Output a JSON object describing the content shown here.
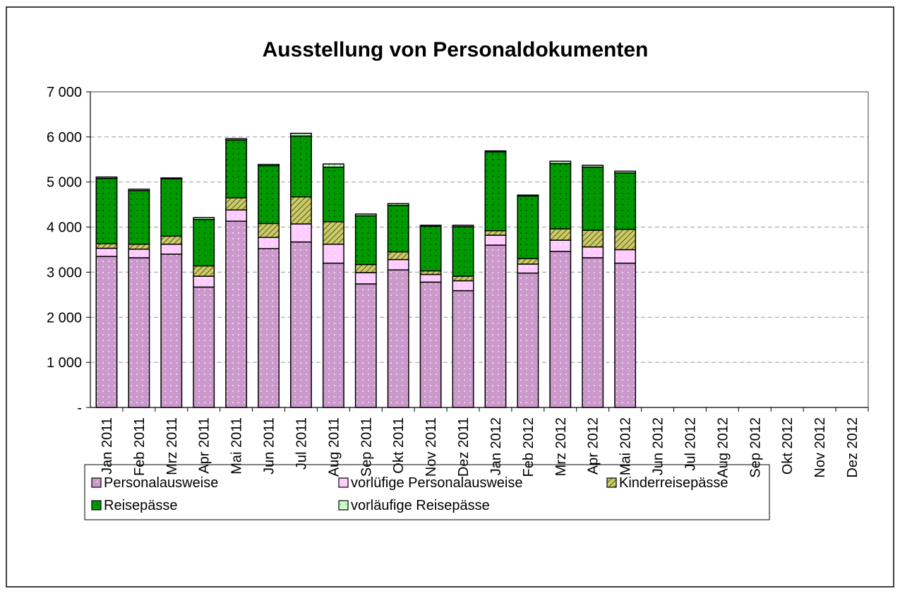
{
  "chart_data": {
    "type": "stacked_bar",
    "title": "Ausstellung von Personaldokumenten",
    "categories": [
      "Jan 2011",
      "Feb 2011",
      "Mrz 2011",
      "Apr 2011",
      "Mai 2011",
      "Jun 2011",
      "Jul 2011",
      "Aug 2011",
      "Sep 2011",
      "Okt 2011",
      "Nov 2011",
      "Dez 2011",
      "Jan 2012",
      "Feb 2012",
      "Mrz 2012",
      "Apr 2012",
      "Mai 2012",
      "Jun 2012",
      "Jul 2012",
      "Aug 2012",
      "Sep 2012",
      "Okt 2012",
      "Nov 2012",
      "Dez 2012"
    ],
    "series": [
      {
        "name": "Personalausweise",
        "color": "#cc99cc",
        "values": [
          3350,
          3320,
          3400,
          2670,
          4130,
          3520,
          3670,
          3200,
          2740,
          3050,
          2780,
          2590,
          3600,
          2980,
          3460,
          3320,
          3200,
          null,
          null,
          null,
          null,
          null,
          null,
          null
        ]
      },
      {
        "name": "vorlüfige Personalausweise",
        "color": "#ffccff",
        "values": [
          180,
          190,
          220,
          240,
          250,
          250,
          400,
          420,
          250,
          230,
          170,
          220,
          220,
          200,
          250,
          240,
          300,
          null,
          null,
          null,
          null,
          null,
          null,
          null
        ]
      },
      {
        "name": "Kinderreisepässe",
        "color": "#cccc66",
        "values": [
          100,
          110,
          180,
          230,
          270,
          310,
          600,
          500,
          180,
          170,
          80,
          100,
          100,
          120,
          250,
          370,
          450,
          null,
          null,
          null,
          null,
          null,
          null,
          null
        ]
      },
      {
        "name": "Reisepässe",
        "color": "#009900",
        "values": [
          1450,
          1190,
          1270,
          1030,
          1280,
          1280,
          1350,
          1210,
          1080,
          1030,
          990,
          1100,
          1750,
          1390,
          1450,
          1400,
          1250,
          null,
          null,
          null,
          null,
          null,
          null,
          null
        ]
      },
      {
        "name": "vorläufige Reisepässe",
        "color": "#ccffcc",
        "values": [
          30,
          30,
          20,
          40,
          30,
          30,
          60,
          70,
          40,
          40,
          20,
          30,
          20,
          20,
          50,
          40,
          40,
          null,
          null,
          null,
          null,
          null,
          null,
          null
        ]
      }
    ],
    "ylim": [
      0,
      7000
    ],
    "yticks": [
      {
        "value": 0,
        "label": "-"
      },
      {
        "value": 1000,
        "label": "1 000"
      },
      {
        "value": 2000,
        "label": "2 000"
      },
      {
        "value": 3000,
        "label": "3 000"
      },
      {
        "value": 4000,
        "label": "4 000"
      },
      {
        "value": 5000,
        "label": "5 000"
      },
      {
        "value": 6000,
        "label": "6 000"
      },
      {
        "value": 7000,
        "label": "7 000"
      }
    ],
    "grid": true,
    "legend": "bottom"
  }
}
